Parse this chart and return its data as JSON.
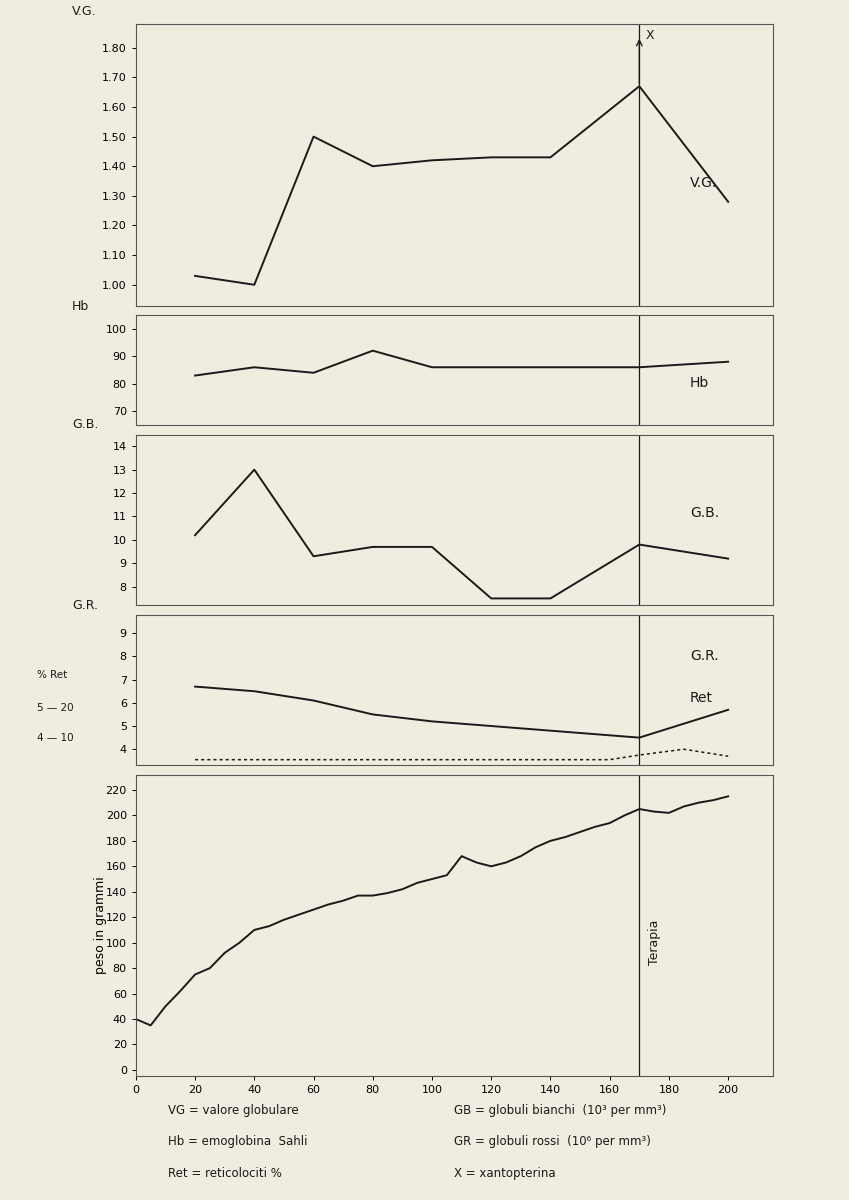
{
  "bg_color": "#f0ece0",
  "line_color": "#1a1a1a",
  "therapy_x": 170,
  "vg": {
    "x": [
      20,
      40,
      60,
      80,
      100,
      120,
      140,
      170,
      200
    ],
    "y": [
      1.03,
      1.0,
      1.5,
      1.4,
      1.42,
      1.43,
      1.43,
      1.67,
      1.28
    ],
    "ylim": [
      0.93,
      1.88
    ],
    "yticks": [
      1.0,
      1.1,
      1.2,
      1.3,
      1.4,
      1.5,
      1.6,
      1.7,
      1.8
    ],
    "ylabel": "V.G.",
    "label": "V.G."
  },
  "hb": {
    "x": [
      20,
      40,
      60,
      80,
      100,
      120,
      140,
      170,
      200
    ],
    "y": [
      83,
      86,
      84,
      92,
      86,
      86,
      86,
      86,
      88
    ],
    "ylim": [
      65,
      105
    ],
    "yticks": [
      70,
      80,
      90,
      100
    ],
    "ylabel": "Hb",
    "label": "Hb"
  },
  "gb": {
    "x": [
      20,
      40,
      60,
      80,
      100,
      120,
      140,
      170,
      200
    ],
    "y": [
      10.2,
      13.0,
      9.3,
      9.7,
      9.7,
      7.5,
      7.5,
      9.8,
      9.2
    ],
    "ylim": [
      7.2,
      14.5
    ],
    "yticks": [
      8,
      9,
      10,
      11,
      12,
      13,
      14
    ],
    "ylabel": "G.B.",
    "label": "G.B."
  },
  "gr": {
    "x": [
      20,
      40,
      60,
      80,
      100,
      120,
      140,
      170,
      200
    ],
    "y": [
      6.7,
      6.5,
      6.1,
      5.5,
      5.2,
      5.0,
      4.8,
      4.5,
      5.7
    ],
    "ylim": [
      3.3,
      9.8
    ],
    "yticks": [
      4,
      5,
      6,
      7,
      8,
      9
    ],
    "ylabel": "G.R.",
    "label": "G.R."
  },
  "ret": {
    "x": [
      20,
      40,
      60,
      80,
      100,
      120,
      140,
      160,
      170,
      185,
      200
    ],
    "y": [
      3.55,
      3.55,
      3.55,
      3.55,
      3.55,
      3.55,
      3.55,
      3.55,
      3.75,
      4.0,
      3.7
    ],
    "label": "Ret"
  },
  "peso": {
    "x": [
      0,
      5,
      10,
      15,
      20,
      25,
      30,
      35,
      40,
      45,
      50,
      55,
      60,
      65,
      70,
      75,
      80,
      85,
      90,
      95,
      100,
      105,
      110,
      115,
      120,
      125,
      130,
      135,
      140,
      145,
      150,
      155,
      160,
      165,
      170,
      175,
      180,
      185,
      190,
      195,
      200
    ],
    "y": [
      40,
      35,
      50,
      62,
      75,
      80,
      92,
      100,
      110,
      113,
      118,
      122,
      126,
      130,
      133,
      137,
      137,
      139,
      142,
      147,
      150,
      153,
      168,
      163,
      160,
      163,
      168,
      175,
      180,
      183,
      187,
      191,
      194,
      200,
      205,
      203,
      202,
      207,
      210,
      212,
      215
    ],
    "ylim": [
      -5,
      232
    ],
    "yticks": [
      0,
      20,
      40,
      60,
      80,
      100,
      120,
      140,
      160,
      180,
      200,
      220
    ],
    "ylabel": "peso in grammi",
    "label": "Terapia"
  },
  "xticks": [
    0,
    20,
    40,
    60,
    80,
    100,
    120,
    140,
    160,
    180,
    200
  ],
  "xlim": [
    0,
    215
  ]
}
